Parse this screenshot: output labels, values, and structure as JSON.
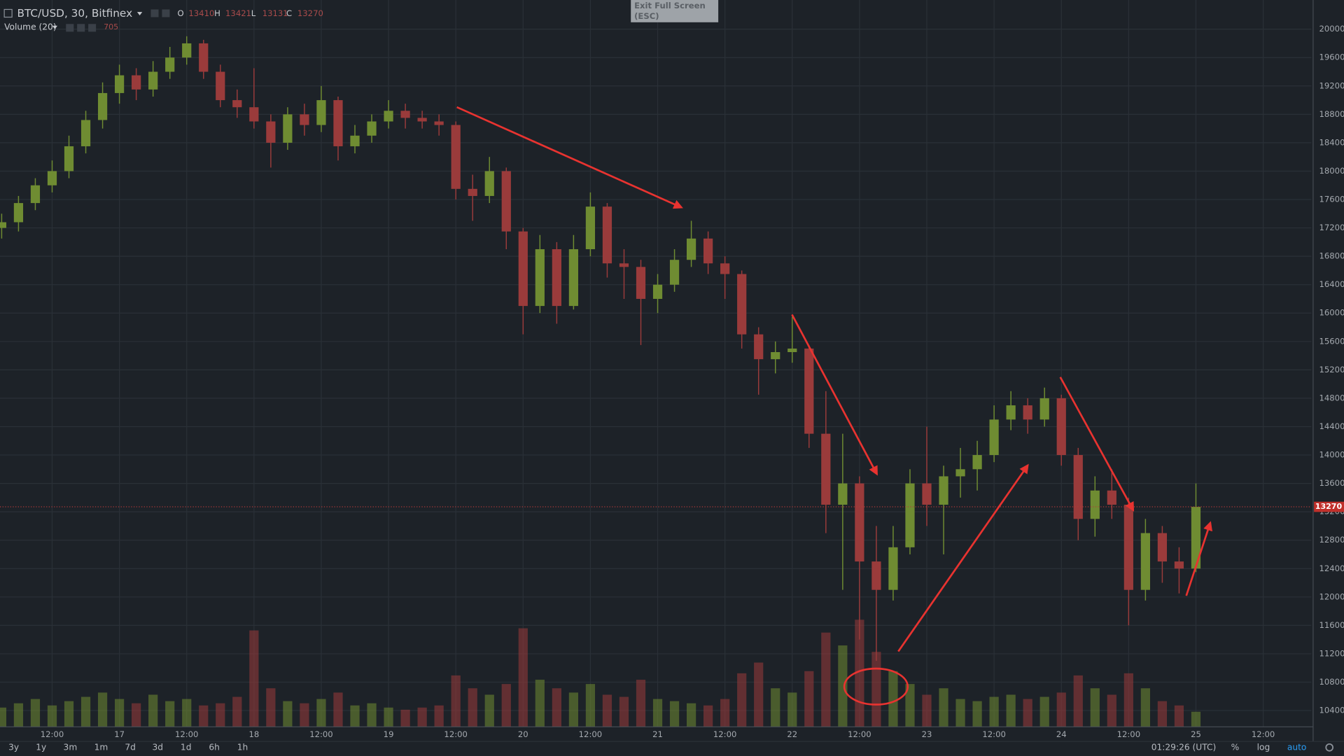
{
  "chart_data": {
    "type": "candlestick",
    "title": "BTC/USD, 30, Bitfinex",
    "ohlc_legend": [
      {
        "label": "O",
        "value": 13410
      },
      {
        "label": "H",
        "value": 13421
      },
      {
        "label": "L",
        "value": 13131
      },
      {
        "label": "C",
        "value": 13270
      }
    ],
    "x": [
      3,
      6,
      9,
      12,
      15,
      18,
      21,
      24,
      27,
      30,
      33,
      36,
      39,
      42,
      45,
      48,
      51,
      54,
      57,
      60,
      63,
      66,
      69,
      72,
      75,
      78,
      81,
      84,
      87,
      90,
      93,
      96,
      99,
      102,
      105,
      108,
      111,
      114,
      117,
      120,
      123,
      126,
      129,
      132,
      135,
      138,
      141,
      144,
      147,
      150,
      153,
      156,
      159,
      162,
      165,
      168,
      171,
      174,
      177,
      180,
      183,
      186,
      189,
      192,
      195,
      198,
      201,
      204,
      207,
      210,
      213,
      216
    ],
    "open": [
      17200,
      17280,
      17550,
      17800,
      18000,
      18350,
      18720,
      19100,
      19350,
      19150,
      19400,
      19600,
      19800,
      19400,
      19000,
      18900,
      18700,
      18400,
      18800,
      18650,
      19000,
      18350,
      18500,
      18700,
      18850,
      18750,
      18700,
      18650,
      17750,
      17650,
      18000,
      17150,
      16100,
      16900,
      16100,
      16900,
      17500,
      16700,
      16650,
      16200,
      16400,
      16750,
      17050,
      16700,
      16550,
      15700,
      15350,
      15450,
      15500,
      14300,
      13300,
      13600,
      12500,
      12100,
      12700,
      13600,
      13300,
      13700,
      13800,
      14000,
      14500,
      14700,
      14500,
      14800,
      14000,
      13100,
      13500,
      13300,
      12100,
      12900,
      12500,
      12400
    ],
    "high": [
      17400,
      17650,
      17900,
      18150,
      18500,
      18850,
      19250,
      19500,
      19450,
      19550,
      19750,
      19900,
      19850,
      19500,
      19150,
      19450,
      18800,
      18900,
      18950,
      19200,
      19050,
      18650,
      18800,
      19000,
      18950,
      18850,
      18800,
      18700,
      17950,
      18200,
      18050,
      17200,
      17100,
      17000,
      17100,
      17700,
      17550,
      16900,
      16750,
      16550,
      16900,
      17300,
      17150,
      16800,
      16600,
      15800,
      15600,
      15950,
      15550,
      14900,
      14300,
      13700,
      13000,
      13000,
      13800,
      14400,
      13850,
      14100,
      14200,
      14700,
      14900,
      14800,
      14950,
      14850,
      14100,
      13700,
      13800,
      13400,
      13100,
      13000,
      12700,
      13600
    ],
    "low": [
      17050,
      17150,
      17450,
      17700,
      17900,
      18250,
      18600,
      18950,
      19000,
      19050,
      19300,
      19500,
      19300,
      18900,
      18750,
      18600,
      18050,
      18300,
      18500,
      18550,
      18150,
      18250,
      18400,
      18600,
      18600,
      18600,
      18500,
      17600,
      17300,
      17550,
      16900,
      15700,
      16000,
      15850,
      16050,
      16800,
      16500,
      16200,
      15550,
      16000,
      16300,
      16650,
      16550,
      16200,
      15500,
      14850,
      15150,
      15300,
      14100,
      12900,
      12100,
      11400,
      11100,
      11950,
      12600,
      13000,
      12600,
      13400,
      13500,
      13900,
      14350,
      14300,
      14400,
      13850,
      12800,
      12850,
      13100,
      11600,
      11950,
      12200,
      12050,
      12350
    ],
    "close": [
      17280,
      17550,
      17800,
      18000,
      18350,
      18720,
      19100,
      19350,
      19150,
      19400,
      19600,
      19800,
      19400,
      19000,
      18900,
      18700,
      18400,
      18800,
      18650,
      19000,
      18350,
      18500,
      18700,
      18850,
      18750,
      18700,
      18650,
      17750,
      17650,
      18000,
      17150,
      16100,
      16900,
      16100,
      16900,
      17500,
      16700,
      16650,
      16200,
      16400,
      16750,
      17050,
      16700,
      16550,
      15700,
      15350,
      15450,
      15500,
      14300,
      13300,
      13600,
      12500,
      12100,
      12700,
      13600,
      13300,
      13700,
      13800,
      14000,
      14500,
      14700,
      14500,
      14800,
      14000,
      13100,
      13500,
      13300,
      12100,
      12900,
      12500,
      12400,
      13270
    ],
    "volume": {
      "name": "Volume (20)",
      "last": 705,
      "vlim": [
        0,
        6000
      ],
      "values": [
        900,
        1100,
        1300,
        1000,
        1200,
        1400,
        1600,
        1300,
        1100,
        1500,
        1200,
        1300,
        1000,
        1100,
        1400,
        4500,
        1800,
        1200,
        1100,
        1300,
        1600,
        1000,
        1100,
        900,
        800,
        900,
        1000,
        2400,
        1800,
        1500,
        2000,
        4600,
        2200,
        1800,
        1600,
        2000,
        1500,
        1400,
        2200,
        1300,
        1200,
        1100,
        1000,
        1300,
        2500,
        3000,
        1800,
        1600,
        2600,
        4400,
        3800,
        5000,
        3500,
        2600,
        2000,
        1500,
        1800,
        1300,
        1200,
        1400,
        1500,
        1300,
        1400,
        1600,
        2400,
        1800,
        1500,
        2500,
        1800,
        1200,
        1000,
        705
      ]
    },
    "xlim": [
      2.7,
      236.6
    ],
    "xticks": [
      {
        "value": 12,
        "label": "12:00"
      },
      {
        "value": 24,
        "label": "17"
      },
      {
        "value": 36,
        "label": "12:00"
      },
      {
        "value": 48,
        "label": "18"
      },
      {
        "value": 60,
        "label": "12:00"
      },
      {
        "value": 72,
        "label": "19"
      },
      {
        "value": 84,
        "label": "12:00"
      },
      {
        "value": 96,
        "label": "20"
      },
      {
        "value": 108,
        "label": "12:00"
      },
      {
        "value": 120,
        "label": "21"
      },
      {
        "value": 132,
        "label": "12:00"
      },
      {
        "value": 144,
        "label": "22"
      },
      {
        "value": 156,
        "label": "12:00"
      },
      {
        "value": 168,
        "label": "23"
      },
      {
        "value": 180,
        "label": "12:00"
      },
      {
        "value": 192,
        "label": "24"
      },
      {
        "value": 204,
        "label": "12:00"
      },
      {
        "value": 216,
        "label": "25"
      },
      {
        "value": 228,
        "label": "12:00"
      }
    ],
    "ylim": [
      10170,
      20411
    ],
    "yticks": [
      10400,
      10800,
      11200,
      11600,
      12000,
      12400,
      12800,
      13200,
      13600,
      14000,
      14400,
      14800,
      15200,
      15600,
      16000,
      16400,
      16800,
      17200,
      17600,
      18000,
      18400,
      18800,
      19200,
      19600,
      20000
    ],
    "last_price": 13270,
    "grid": true,
    "up_color": "#6f8c32",
    "down_color": "#9a3b3b"
  },
  "ui": {
    "exit_button": [
      "Exit Full Screen",
      "(ESC)"
    ],
    "timeframes": [
      "3y",
      "1y",
      "3m",
      "1m",
      "7d",
      "3d",
      "1d",
      "6h",
      "1h"
    ],
    "clock": "01:29:26 (UTC)",
    "toggles": [
      "%",
      "log",
      "auto"
    ]
  }
}
